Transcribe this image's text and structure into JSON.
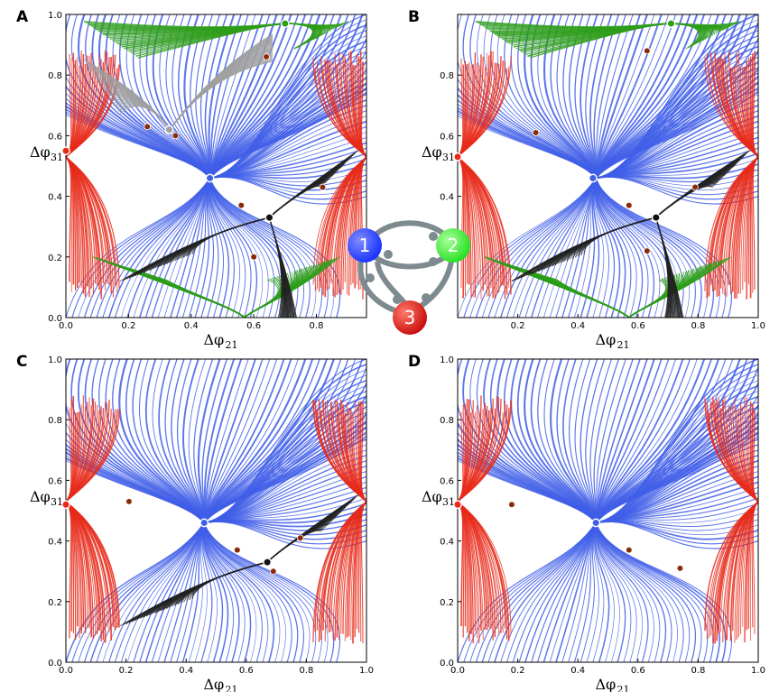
{
  "figure": {
    "network": {
      "nodes": [
        {
          "label": "1",
          "color": "#1530ff"
        },
        {
          "label": "2",
          "color": "#22e020"
        },
        {
          "label": "3",
          "color": "#e01010"
        }
      ],
      "link_color": "#7d8a8f"
    }
  },
  "chart_data": [
    {
      "panel": "A",
      "type": "scatter",
      "xlabel": "Δφ",
      "xlabel_sub": "21",
      "ylabel": "Δφ",
      "ylabel_sub": "31",
      "xlim": [
        0,
        1
      ],
      "ylim": [
        0,
        1
      ],
      "xticks": [
        "0.0",
        "0.2",
        "0.4",
        "0.6",
        "0.8"
      ],
      "yticks": [
        "0.0",
        "0.2",
        "0.4",
        "0.6",
        "0.8",
        "1.0"
      ],
      "grid": false,
      "basins": [
        {
          "name": "node1",
          "color": "#3f5ee8"
        },
        {
          "name": "node2",
          "color": "#2e9e1a"
        },
        {
          "name": "node3",
          "color": "#e82a1a"
        },
        {
          "name": "black",
          "color": "#222222"
        },
        {
          "name": "gray",
          "color": "#a0a0a0"
        }
      ],
      "stable_points": [
        {
          "x": 0.0,
          "y": 0.55,
          "color": "#e82a1a"
        },
        {
          "x": 0.46,
          "y": 0.46,
          "color": "#3f5ee8"
        },
        {
          "x": 0.65,
          "y": 0.33,
          "color": "#111111"
        },
        {
          "x": 0.7,
          "y": 0.97,
          "color": "#2e9e1a"
        },
        {
          "x": 0.33,
          "y": 0.62,
          "color": "#a0a0a0"
        }
      ],
      "saddle_points": [
        {
          "x": 0.26,
          "y": 0.63
        },
        {
          "x": 0.35,
          "y": 0.6
        },
        {
          "x": 0.64,
          "y": 0.86
        },
        {
          "x": 0.56,
          "y": 0.37
        },
        {
          "x": 0.82,
          "y": 0.43
        },
        {
          "x": 0.6,
          "y": 0.2
        }
      ]
    },
    {
      "panel": "B",
      "type": "scatter",
      "xlabel": "Δφ",
      "xlabel_sub": "21",
      "ylabel": "Δφ",
      "ylabel_sub": "31",
      "xlim": [
        0,
        1
      ],
      "ylim": [
        0,
        1
      ],
      "xticks": [
        "0.2",
        "0.4",
        "0.6",
        "0.8",
        "1.0"
      ],
      "yticks": [
        "0.2",
        "0.4",
        "0.6",
        "0.8"
      ],
      "grid": false,
      "basins": [
        {
          "name": "node1",
          "color": "#3f5ee8"
        },
        {
          "name": "node2",
          "color": "#2e9e1a"
        },
        {
          "name": "node3",
          "color": "#e82a1a"
        },
        {
          "name": "black",
          "color": "#222222"
        }
      ],
      "stable_points": [
        {
          "x": 0.0,
          "y": 0.53,
          "color": "#e82a1a"
        },
        {
          "x": 0.45,
          "y": 0.46,
          "color": "#3f5ee8"
        },
        {
          "x": 0.66,
          "y": 0.33,
          "color": "#111111"
        },
        {
          "x": 0.71,
          "y": 0.97,
          "color": "#2e9e1a"
        }
      ],
      "saddle_points": [
        {
          "x": 0.26,
          "y": 0.61
        },
        {
          "x": 0.57,
          "y": 0.37
        },
        {
          "x": 0.79,
          "y": 0.43
        },
        {
          "x": 0.63,
          "y": 0.22
        },
        {
          "x": 0.63,
          "y": 0.88
        }
      ]
    },
    {
      "panel": "C",
      "type": "scatter",
      "xlabel": "Δφ",
      "xlabel_sub": "21",
      "ylabel": "Δφ",
      "ylabel_sub": "31",
      "xlim": [
        0,
        1
      ],
      "ylim": [
        0,
        1
      ],
      "xticks": [
        "0.0",
        "0.2",
        "0.4",
        "0.6",
        "0.8",
        "1.0"
      ],
      "yticks": [
        "0.0",
        "0.2",
        "0.4",
        "0.6",
        "0.8",
        "1.0"
      ],
      "grid": false,
      "basins": [
        {
          "name": "node1",
          "color": "#3f5ee8"
        },
        {
          "name": "node3",
          "color": "#e82a1a"
        },
        {
          "name": "black",
          "color": "#222222"
        }
      ],
      "stable_points": [
        {
          "x": 0.0,
          "y": 0.52,
          "color": "#e82a1a"
        },
        {
          "x": 0.46,
          "y": 0.46,
          "color": "#3f5ee8"
        },
        {
          "x": 0.67,
          "y": 0.33,
          "color": "#111111"
        }
      ],
      "saddle_points": [
        {
          "x": 0.21,
          "y": 0.53
        },
        {
          "x": 0.57,
          "y": 0.37
        },
        {
          "x": 0.78,
          "y": 0.41
        },
        {
          "x": 0.69,
          "y": 0.3
        }
      ]
    },
    {
      "panel": "D",
      "type": "scatter",
      "xlabel": "Δφ",
      "xlabel_sub": "21",
      "ylabel": "Δφ",
      "ylabel_sub": "31",
      "xlim": [
        0,
        1
      ],
      "ylim": [
        0,
        1
      ],
      "xticks": [
        "0.0",
        "0.2",
        "0.4",
        "0.6",
        "0.8",
        "1.0"
      ],
      "yticks": [
        "0.0",
        "0.2",
        "0.4",
        "0.6",
        "0.8",
        "1.0"
      ],
      "grid": false,
      "basins": [
        {
          "name": "node1",
          "color": "#3f5ee8"
        },
        {
          "name": "node3",
          "color": "#e82a1a"
        }
      ],
      "stable_points": [
        {
          "x": 0.0,
          "y": 0.52,
          "color": "#e82a1a"
        },
        {
          "x": 0.46,
          "y": 0.46,
          "color": "#3f5ee8"
        }
      ],
      "saddle_points": [
        {
          "x": 0.18,
          "y": 0.52
        },
        {
          "x": 0.57,
          "y": 0.37
        },
        {
          "x": 0.74,
          "y": 0.31
        }
      ]
    }
  ]
}
